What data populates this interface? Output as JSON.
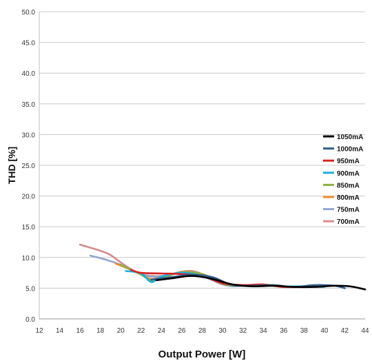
{
  "chart_data": {
    "type": "line",
    "title": "",
    "xlabel": "Output Power [W]",
    "ylabel": "THD [%]",
    "xlim": [
      12,
      44
    ],
    "ylim": [
      0,
      50
    ],
    "xticks": [
      "12",
      "14",
      "16",
      "18",
      "20",
      "22",
      "24",
      "26",
      "28",
      "30",
      "32",
      "34",
      "36",
      "38",
      "40",
      "42",
      "44"
    ],
    "yticks": [
      "0.0",
      "5.0",
      "10.0",
      "15.0",
      "20.0",
      "25.0",
      "30.0",
      "35.0",
      "40.0",
      "45.0",
      "50.0"
    ],
    "grid": "horizontal",
    "legend_position": "right",
    "series": [
      {
        "name": "1050mA",
        "color": "#000000",
        "x": [
          23.5,
          25,
          27,
          29,
          31,
          33,
          35,
          37,
          39,
          41,
          42.5,
          44
        ],
        "y": [
          6.3,
          6.6,
          7.0,
          6.5,
          5.6,
          5.3,
          5.4,
          5.2,
          5.2,
          5.4,
          5.3,
          4.8
        ]
      },
      {
        "name": "1000mA",
        "color": "#2e5e8c",
        "x": [
          23,
          25,
          27,
          29,
          31,
          33,
          35,
          37,
          39,
          41,
          42
        ],
        "y": [
          6.4,
          6.8,
          7.2,
          6.8,
          5.5,
          5.4,
          5.5,
          5.2,
          5.5,
          5.4,
          5.0
        ]
      },
      {
        "name": "950mA",
        "color": "#e02020",
        "x": [
          21,
          22,
          24,
          26,
          28,
          30,
          32,
          34,
          36,
          38,
          40
        ],
        "y": [
          8.0,
          7.5,
          7.4,
          7.3,
          7.0,
          5.8,
          5.5,
          5.6,
          5.2,
          5.2,
          5.3
        ]
      },
      {
        "name": "900mA",
        "color": "#18b0e0",
        "x": [
          20.5,
          22,
          23,
          24,
          26,
          28,
          30,
          32,
          34,
          36,
          38,
          40
        ],
        "y": [
          7.8,
          7.4,
          6.0,
          6.9,
          7.5,
          7.0,
          5.8,
          5.5,
          5.5,
          5.3,
          5.3,
          5.2
        ]
      },
      {
        "name": "850mA",
        "color": "#8db03c",
        "x": [
          20,
          21,
          22,
          23,
          24,
          26,
          28,
          30,
          32,
          34,
          36,
          38
        ],
        "y": [
          8.8,
          8.0,
          7.2,
          6.3,
          6.6,
          7.6,
          7.3,
          5.7,
          5.4,
          5.5,
          5.2,
          5.3
        ]
      },
      {
        "name": "800mA",
        "color": "#f08a2c",
        "x": [
          19.5,
          21,
          22,
          23,
          24,
          26,
          28,
          30,
          32,
          34,
          36
        ],
        "y": [
          9.0,
          8.0,
          7.2,
          6.5,
          6.8,
          7.6,
          7.3,
          5.9,
          5.4,
          5.6,
          5.2
        ]
      },
      {
        "name": "750mA",
        "color": "#8fa6cf",
        "x": [
          17,
          18,
          19,
          20,
          21,
          22,
          23,
          24,
          25,
          26,
          27,
          28,
          29,
          30,
          31,
          32,
          34
        ],
        "y": [
          10.3,
          9.9,
          9.4,
          8.8,
          8.0,
          7.3,
          6.9,
          6.9,
          7.3,
          7.6,
          7.4,
          7.0,
          6.3,
          5.6,
          5.3,
          5.4,
          5.5
        ]
      },
      {
        "name": "700mA",
        "color": "#d88a8a",
        "x": [
          16,
          17,
          18,
          19,
          20,
          21,
          22,
          23,
          24,
          25,
          26,
          27,
          28,
          29,
          30,
          31,
          32
        ],
        "y": [
          12.1,
          11.6,
          11.1,
          10.4,
          9.2,
          8.1,
          7.3,
          7.0,
          7.0,
          7.3,
          7.7,
          7.8,
          7.3,
          6.4,
          5.7,
          5.5,
          5.5
        ]
      }
    ]
  }
}
